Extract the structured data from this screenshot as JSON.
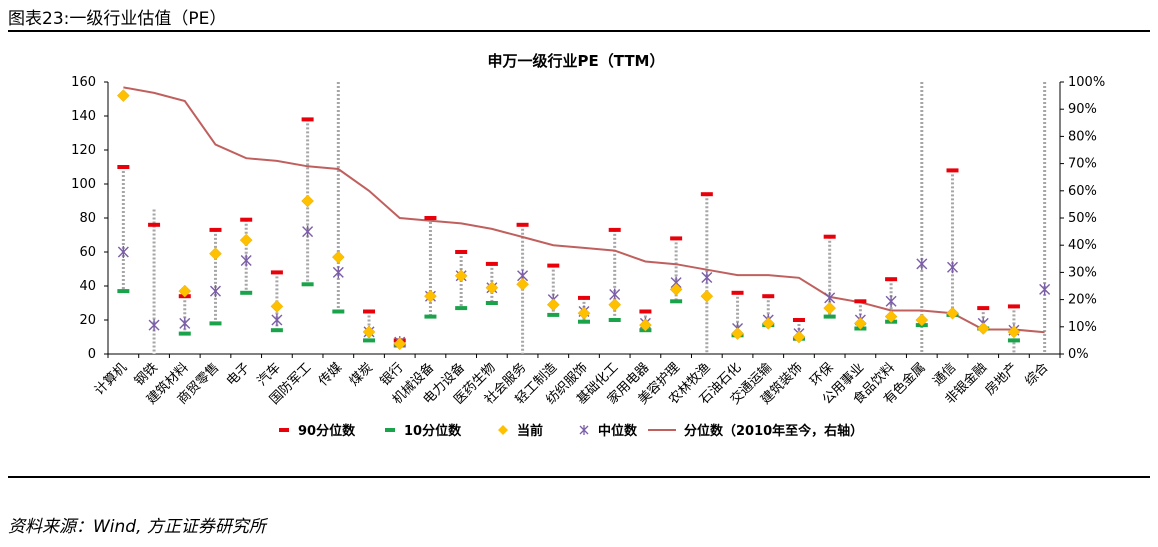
{
  "figure_title": "图表23:一级行业估值（PE）",
  "source_note": "资料来源：Wind, 方正证券研究所",
  "colors": {
    "p90": "#e8000b",
    "p10": "#1aa34a",
    "current": "#ffc000",
    "median": "#7b5ea7",
    "percentile_line": "#c0605e",
    "range": "#a6a6a6"
  },
  "chart_data": {
    "type": "scatter",
    "title": "申万一级行业PE（TTM）",
    "y_left": {
      "min": 0,
      "max": 160,
      "step": 20,
      "ticks": [
        "0",
        "20",
        "40",
        "60",
        "80",
        "100",
        "120",
        "140",
        "160"
      ]
    },
    "y_right": {
      "min": 0,
      "max": 100,
      "step": 10,
      "ticks": [
        "0%",
        "10%",
        "20%",
        "30%",
        "40%",
        "50%",
        "60%",
        "70%",
        "80%",
        "90%",
        "100%"
      ]
    },
    "categories": [
      "计算机",
      "钢铁",
      "建筑材料",
      "商贸零售",
      "电子",
      "汽车",
      "国防军工",
      "传媒",
      "煤炭",
      "银行",
      "机械设备",
      "电力设备",
      "医药生物",
      "社会服务",
      "轻工制造",
      "纺织服饰",
      "基础化工",
      "家用电器",
      "美容护理",
      "农林牧渔",
      "石油石化",
      "交通运输",
      "建筑装饰",
      "环保",
      "公用事业",
      "食品饮料",
      "有色金属",
      "通信",
      "非银金融",
      "房地产",
      "综合"
    ],
    "series": [
      {
        "name": "90分位数",
        "axis": "left",
        "values": [
          110,
          76,
          34,
          73,
          79,
          48,
          138,
          null,
          25,
          8,
          80,
          60,
          53,
          76,
          52,
          33,
          73,
          25,
          68,
          94,
          36,
          34,
          20,
          69,
          31,
          44,
          null,
          108,
          27,
          28,
          null
        ]
      },
      {
        "name": "10分位数",
        "axis": "left",
        "values": [
          37,
          null,
          12,
          18,
          36,
          14,
          41,
          25,
          8,
          5,
          22,
          27,
          30,
          null,
          23,
          19,
          20,
          14,
          31,
          null,
          11,
          17,
          9,
          22,
          15,
          19,
          17,
          23,
          15,
          8,
          null
        ]
      },
      {
        "name": "当前",
        "axis": "left",
        "values": [
          152,
          null,
          37,
          59,
          67,
          28,
          90,
          57,
          13,
          6,
          34,
          46,
          39,
          41,
          29,
          24,
          29,
          17,
          38,
          34,
          12,
          18,
          10,
          27,
          18,
          22,
          20,
          24,
          15,
          13,
          null
        ]
      },
      {
        "name": "中位数",
        "axis": "left",
        "values": [
          60,
          17,
          18,
          37,
          55,
          20,
          72,
          48,
          13,
          7,
          34,
          46,
          39,
          46,
          32,
          25,
          35,
          18,
          42,
          45,
          15,
          20,
          12,
          33,
          20,
          31,
          53,
          51,
          18,
          14,
          38
        ]
      },
      {
        "name": "分位数（2010年至今，右轴）",
        "axis": "right",
        "values": [
          98,
          96,
          93,
          77,
          72,
          71,
          69,
          68,
          60,
          50,
          49,
          48,
          46,
          43,
          40,
          39,
          38,
          34,
          33,
          31,
          29,
          29,
          28,
          21,
          19,
          16,
          16,
          15,
          9,
          9,
          8
        ]
      }
    ],
    "range_bounds": [
      [
        37,
        110
      ],
      [
        0,
        85
      ],
      [
        12,
        34
      ],
      [
        18,
        73
      ],
      [
        36,
        79
      ],
      [
        14,
        48
      ],
      [
        41,
        138
      ],
      [
        25,
        160
      ],
      [
        8,
        25
      ],
      [
        5,
        8
      ],
      [
        22,
        80
      ],
      [
        27,
        60
      ],
      [
        30,
        53
      ],
      [
        0,
        76
      ],
      [
        23,
        52
      ],
      [
        19,
        33
      ],
      [
        20,
        73
      ],
      [
        14,
        25
      ],
      [
        31,
        68
      ],
      [
        0,
        94
      ],
      [
        11,
        36
      ],
      [
        17,
        34
      ],
      [
        9,
        20
      ],
      [
        22,
        69
      ],
      [
        15,
        31
      ],
      [
        19,
        44
      ],
      [
        0,
        160
      ],
      [
        23,
        108
      ],
      [
        15,
        27
      ],
      [
        0,
        28
      ],
      [
        0,
        160
      ]
    ],
    "legend": [
      "90分位数",
      "10分位数",
      "当前",
      "中位数",
      "分位数（2010年至今，右轴）"
    ],
    "legend_position": "bottom"
  }
}
